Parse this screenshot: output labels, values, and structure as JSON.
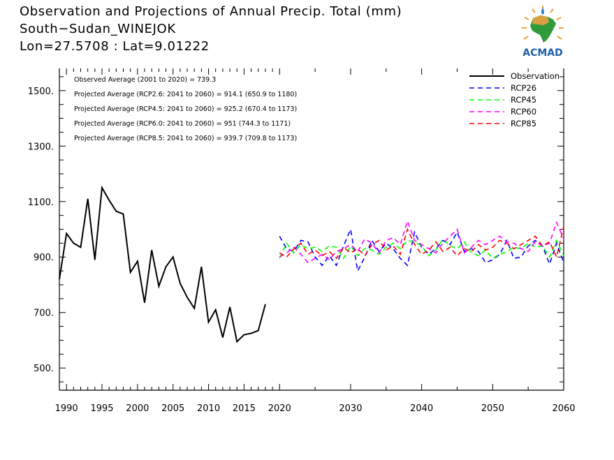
{
  "header": {
    "title": "Observation and Projections of Annual Precip. Total (mm)",
    "location": "South−Sudan_WINEJOK",
    "coords": "Lon=27.5708 : Lat=9.01222"
  },
  "logo": {
    "text": "ACMAD",
    "icon": "africa-map-with-raindrop-and-sun-logo"
  },
  "stats": [
    "Observed Average (2001 to 2020) = 739.3",
    "Projected Average (RCP2.6: 2041 to 2060) = 914.1 (650.9 to 1180)",
    "Projected Average (RCP4.5: 2041 to 2060) = 925.2 (670.4 to 1173)",
    "Projected Average (RCP6.0: 2041 to 2060) = 951 (744.3 to 1171)",
    "Projected Average (RCP8.5: 2041 to 2060) = 939.7 (709.8 to 1173)"
  ],
  "chart_data": {
    "type": "line",
    "title": "Observation and Projections of Annual Precip. Total (mm)",
    "xlim": [
      1989,
      2060
    ],
    "ylim": [
      420,
      1580
    ],
    "x_ticks": [
      1990,
      1995,
      2000,
      2005,
      2010,
      2015,
      2020,
      2030,
      2040,
      2050,
      2060
    ],
    "y_ticks": [
      500,
      700,
      900,
      1100,
      1300,
      1500
    ],
    "y_tick_labels": [
      "500.",
      "700.",
      "900.",
      "1100.",
      "1300.",
      "1500."
    ],
    "grid": false,
    "legend_position": "top-right",
    "series": [
      {
        "name": "Observation",
        "color": "#000000",
        "style": "solid",
        "x": [
          1989,
          1990,
          1991,
          1992,
          1993,
          1994,
          1995,
          1996,
          1997,
          1998,
          1999,
          2000,
          2001,
          2002,
          2003,
          2004,
          2005,
          2006,
          2007,
          2008,
          2009,
          2010,
          2011,
          2012,
          2013,
          2014,
          2015,
          2016,
          2017,
          2018,
          2019,
          2020
        ],
        "values": [
          820,
          985,
          950,
          935,
          1110,
          890,
          1150,
          1105,
          1065,
          1055,
          845,
          885,
          735,
          925,
          795,
          865,
          900,
          805,
          755,
          715,
          865,
          665,
          710,
          610,
          720,
          595,
          620,
          625,
          635,
          730,
          null,
          null
        ]
      },
      {
        "name": "RCP26",
        "color": "#0000ff",
        "style": "dashed",
        "x": [
          2020,
          2021,
          2022,
          2023,
          2024,
          2025,
          2026,
          2027,
          2028,
          2029,
          2030,
          2031,
          2032,
          2033,
          2034,
          2035,
          2036,
          2037,
          2038,
          2039,
          2040,
          2041,
          2042,
          2043,
          2044,
          2045,
          2046,
          2047,
          2048,
          2049,
          2050,
          2051,
          2052,
          2053,
          2054,
          2055,
          2056,
          2057,
          2058,
          2059,
          2060
        ],
        "values": [
          975,
          930,
          920,
          960,
          955,
          900,
          870,
          905,
          870,
          940,
          1000,
          850,
          900,
          960,
          920,
          950,
          930,
          895,
          870,
          990,
          935,
          910,
          930,
          960,
          945,
          990,
          920,
          930,
          920,
          880,
          890,
          910,
          960,
          895,
          900,
          940,
          960,
          940,
          875,
          950,
          880
        ]
      },
      {
        "name": "RCP45",
        "color": "#00ff00",
        "style": "dashed",
        "x": [
          2020,
          2021,
          2022,
          2023,
          2024,
          2025,
          2026,
          2027,
          2028,
          2029,
          2030,
          2031,
          2032,
          2033,
          2034,
          2035,
          2036,
          2037,
          2038,
          2039,
          2040,
          2041,
          2042,
          2043,
          2044,
          2045,
          2046,
          2047,
          2048,
          2049,
          2050,
          2051,
          2052,
          2053,
          2054,
          2055,
          2056,
          2057,
          2058,
          2059,
          2060
        ],
        "values": [
          895,
          950,
          915,
          945,
          930,
          935,
          920,
          940,
          935,
          895,
          940,
          905,
          930,
          925,
          910,
          935,
          950,
          930,
          960,
          955,
          940,
          905,
          925,
          965,
          940,
          930,
          955,
          915,
          905,
          925,
          895,
          910,
          920,
          935,
          930,
          950,
          935,
          940,
          900,
          960,
          905
        ]
      },
      {
        "name": "RCP60",
        "color": "#ff00ff",
        "style": "dashed",
        "x": [
          2020,
          2021,
          2022,
          2023,
          2024,
          2025,
          2026,
          2027,
          2028,
          2029,
          2030,
          2031,
          2032,
          2033,
          2034,
          2035,
          2036,
          2037,
          2038,
          2039,
          2040,
          2041,
          2042,
          2043,
          2044,
          2045,
          2046,
          2047,
          2048,
          2049,
          2050,
          2051,
          2052,
          2053,
          2054,
          2055,
          2056,
          2057,
          2058,
          2059,
          2060
        ],
        "values": [
          900,
          915,
          935,
          910,
          880,
          895,
          910,
          890,
          920,
          930,
          945,
          920,
          965,
          950,
          915,
          960,
          970,
          945,
          1030,
          960,
          945,
          930,
          915,
          950,
          975,
          1000,
          915,
          935,
          960,
          945,
          960,
          975,
          955,
          950,
          930,
          920,
          955,
          940,
          950,
          1025,
          965
        ]
      },
      {
        "name": "RCP85",
        "color": "#ff0000",
        "style": "dashed",
        "x": [
          2020,
          2021,
          2022,
          2023,
          2024,
          2025,
          2026,
          2027,
          2028,
          2029,
          2030,
          2031,
          2032,
          2033,
          2034,
          2035,
          2036,
          2037,
          2038,
          2039,
          2040,
          2041,
          2042,
          2043,
          2044,
          2045,
          2046,
          2047,
          2048,
          2049,
          2050,
          2051,
          2052,
          2053,
          2054,
          2055,
          2056,
          2057,
          2058,
          2059,
          2060
        ],
        "values": [
          915,
          900,
          930,
          950,
          910,
          925,
          905,
          920,
          895,
          935,
          915,
          930,
          905,
          945,
          960,
          925,
          940,
          910,
          1000,
          945,
          910,
          925,
          955,
          920,
          935,
          905,
          930,
          920,
          945,
          925,
          935,
          960,
          950,
          930,
          945,
          960,
          975,
          940,
          955,
          900,
          1010
        ]
      }
    ]
  }
}
